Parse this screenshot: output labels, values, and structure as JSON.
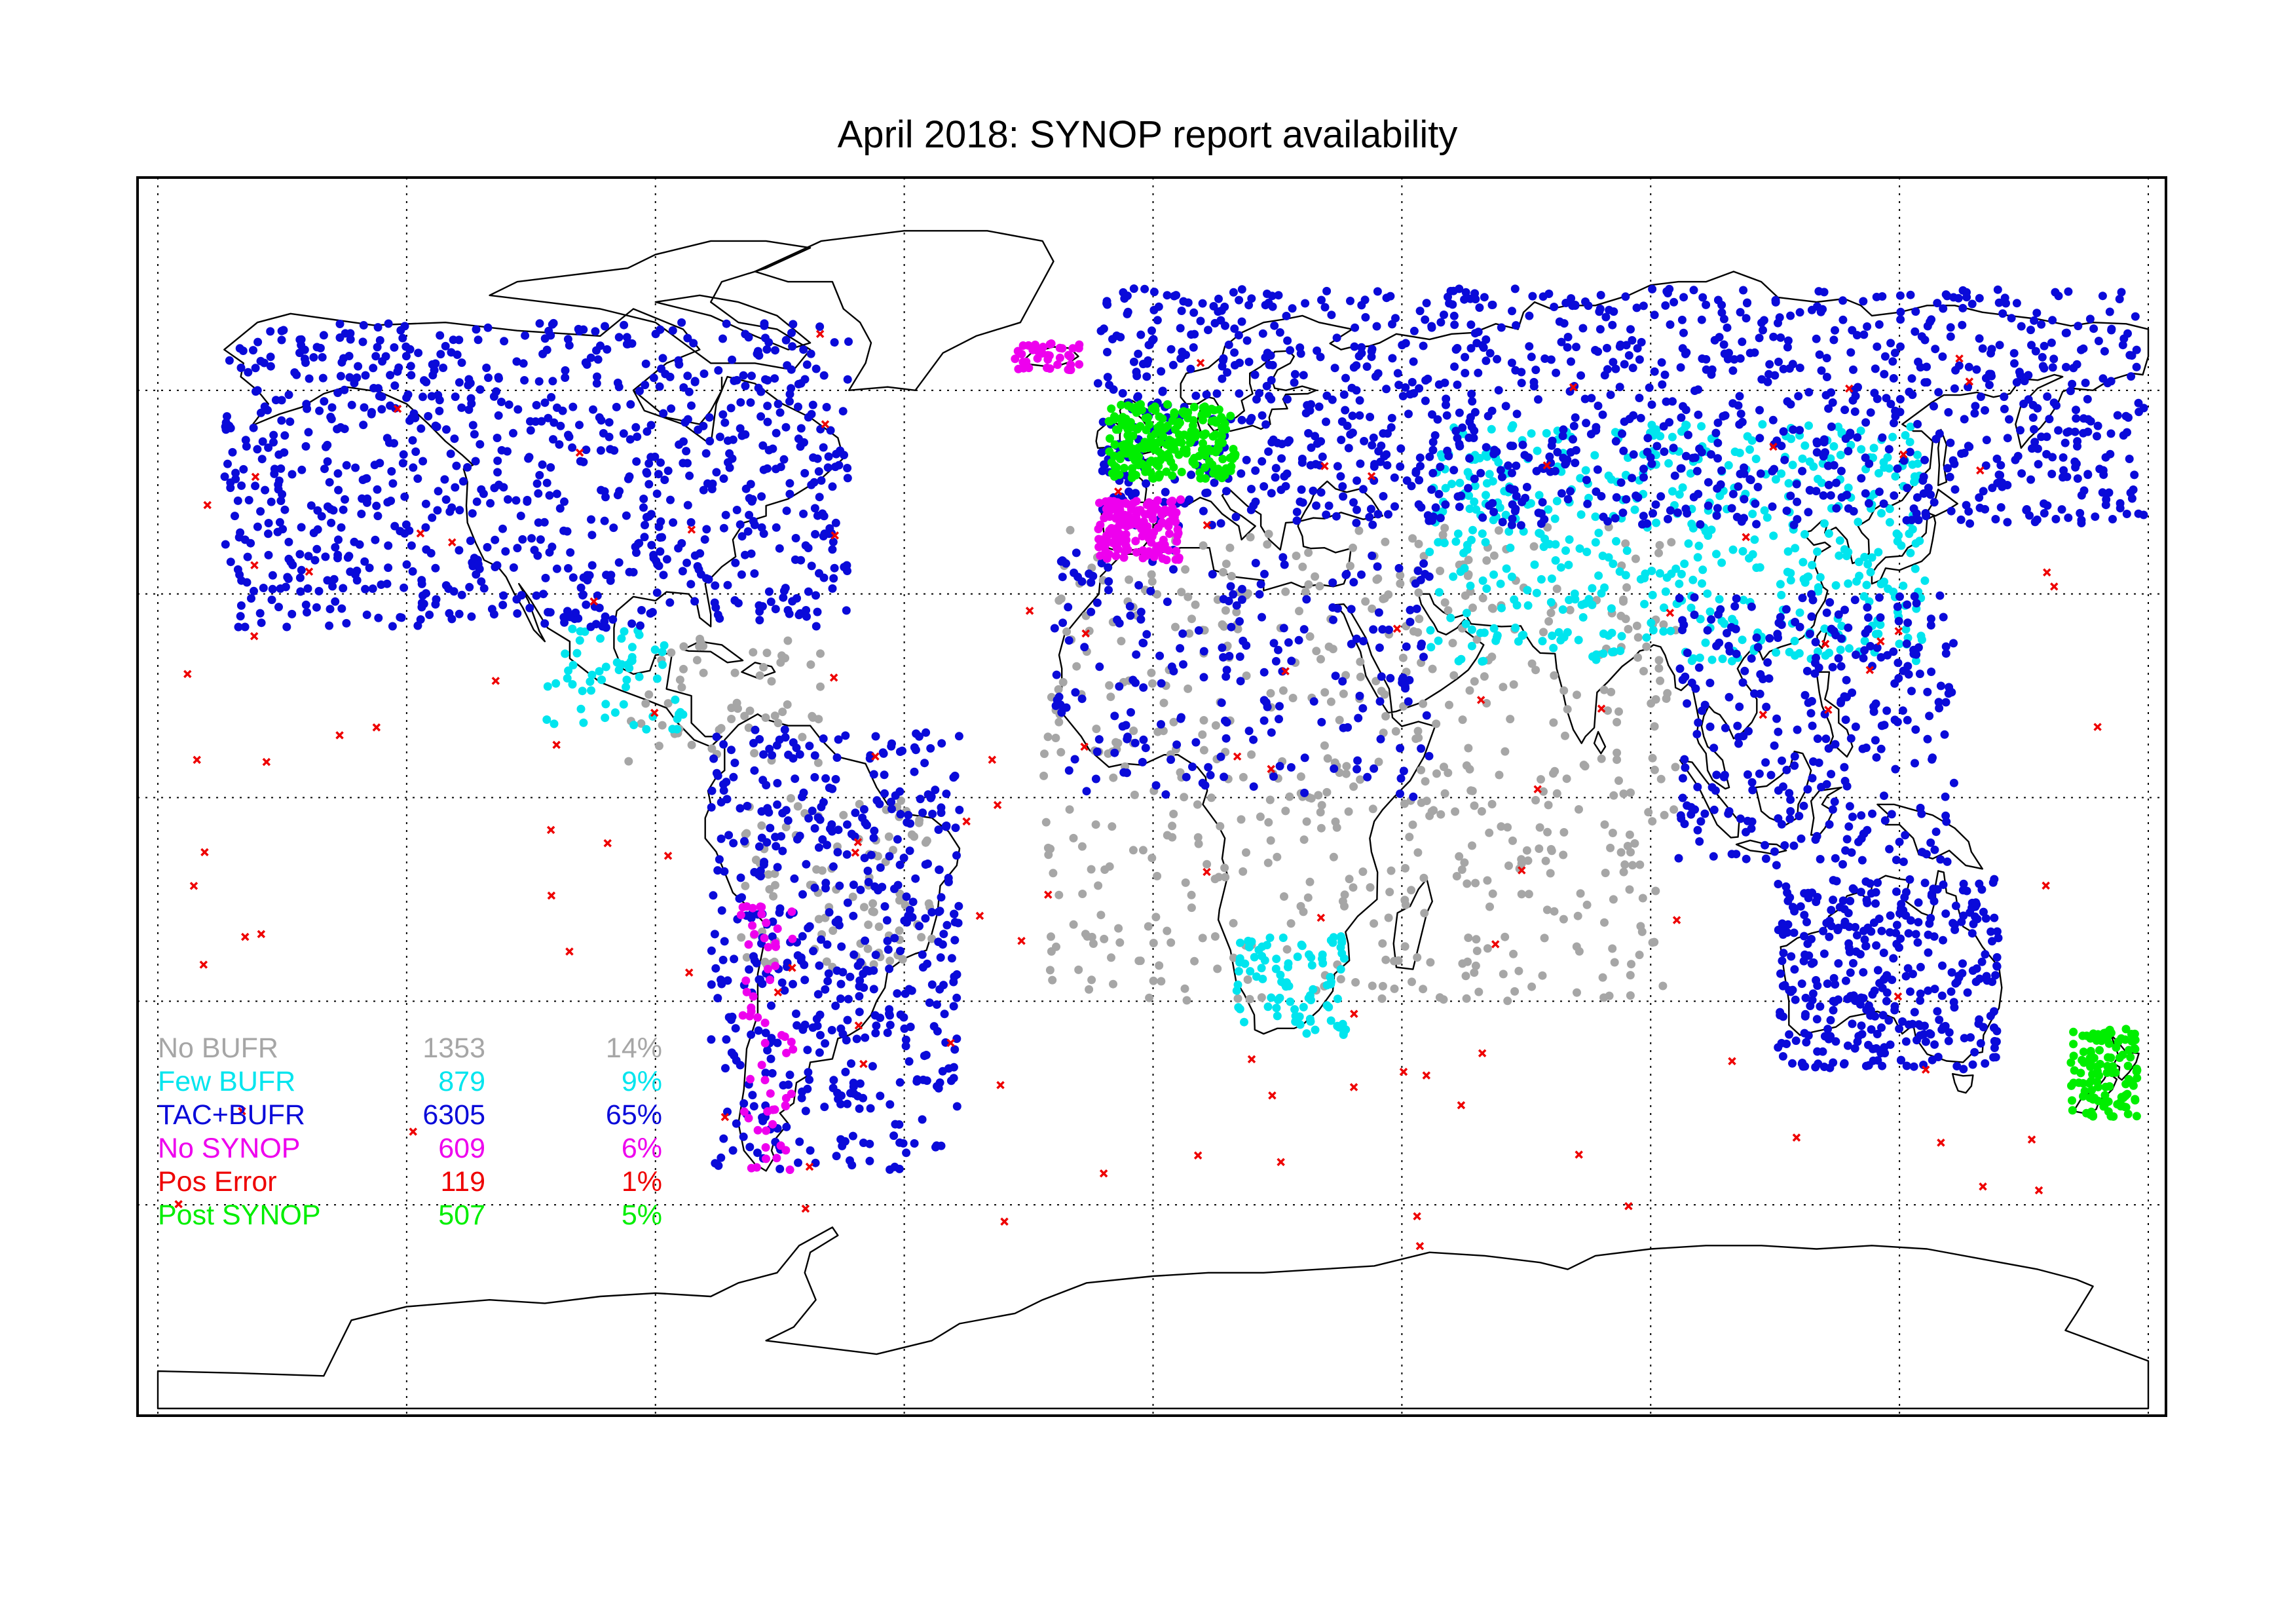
{
  "title": "April 2018: SYNOP report availability",
  "colors": {
    "no_bufr": "#a6a6a6",
    "few_bufr": "#00e5ee",
    "tac_bufr": "#0a0ad9",
    "no_synop": "#ee00ee",
    "pos_error": "#ee0000",
    "post_synop": "#00ee00",
    "coastline": "#000000",
    "grid": "#000000"
  },
  "legend": [
    {
      "key": "no_bufr",
      "label": "No BUFR",
      "count": "1353",
      "percent": "14%"
    },
    {
      "key": "few_bufr",
      "label": "Few BUFR",
      "count": "879",
      "percent": "9%"
    },
    {
      "key": "tac_bufr",
      "label": "TAC+BUFR",
      "count": "6305",
      "percent": "65%"
    },
    {
      "key": "no_synop",
      "label": "No SYNOP",
      "count": "609",
      "percent": "6%"
    },
    {
      "key": "pos_error",
      "label": "Pos Error",
      "count": "119",
      "percent": "1%"
    },
    {
      "key": "post_synop",
      "label": "Post SYNOP",
      "count": "507",
      "percent": "5%"
    }
  ],
  "map": {
    "projection": "equirectangular",
    "lon_range": [
      -180,
      180
    ],
    "lat_range": [
      -90,
      90
    ],
    "grid_lon_step": 45,
    "grid_lat_step": 30,
    "grid_style": "dotted",
    "continents": [
      "north-america",
      "greenland",
      "south-america",
      "europe-asia",
      "africa",
      "australia",
      "antarctica",
      "arabia",
      "india",
      "indochina",
      "japan",
      "indonesia",
      "new-guinea",
      "new-zealand",
      "madagascar",
      "great-britain",
      "iceland",
      "philippines",
      "sri-lanka"
    ],
    "station_clusters": [
      {
        "type": "tac_bufr",
        "lon": [
          -168,
          -55
        ],
        "lat": [
          25,
          70
        ],
        "n": 900
      },
      {
        "type": "tac_bufr",
        "lon": [
          -10,
          180
        ],
        "lat": [
          40,
          75
        ],
        "n": 1200
      },
      {
        "type": "tac_bufr",
        "lon": [
          -80,
          -35
        ],
        "lat": [
          -55,
          10
        ],
        "n": 500
      },
      {
        "type": "tac_bufr",
        "lon": [
          113,
          153
        ],
        "lat": [
          -40,
          -12
        ],
        "n": 350
      },
      {
        "type": "tac_bufr",
        "lon": [
          95,
          145
        ],
        "lat": [
          -10,
          30
        ],
        "n": 300
      },
      {
        "type": "tac_bufr",
        "lon": [
          -18,
          50
        ],
        "lat": [
          0,
          38
        ],
        "n": 220
      },
      {
        "type": "few_bufr",
        "lon": [
          50,
          140
        ],
        "lat": [
          20,
          55
        ],
        "n": 520
      },
      {
        "type": "few_bufr",
        "lon": [
          15,
          35
        ],
        "lat": [
          -35,
          -20
        ],
        "n": 90
      },
      {
        "type": "few_bufr",
        "lon": [
          -110,
          -85
        ],
        "lat": [
          10,
          25
        ],
        "n": 60
      },
      {
        "type": "no_bufr",
        "lon": [
          -20,
          95
        ],
        "lat": [
          -30,
          40
        ],
        "n": 600
      },
      {
        "type": "no_bufr",
        "lon": [
          -75,
          -40
        ],
        "lat": [
          -25,
          0
        ],
        "n": 100
      },
      {
        "type": "no_bufr",
        "lon": [
          -95,
          -60
        ],
        "lat": [
          5,
          25
        ],
        "n": 60
      },
      {
        "type": "no_synop",
        "lon": [
          -10,
          5
        ],
        "lat": [
          35,
          44
        ],
        "n": 150
      },
      {
        "type": "no_synop",
        "lon": [
          -75,
          -65
        ],
        "lat": [
          -55,
          -15
        ],
        "n": 60
      },
      {
        "type": "no_synop",
        "lon": [
          -25,
          -13
        ],
        "lat": [
          63,
          67
        ],
        "n": 40
      },
      {
        "type": "post_synop",
        "lon": [
          -8,
          15
        ],
        "lat": [
          47,
          58
        ],
        "n": 240
      },
      {
        "type": "post_synop",
        "lon": [
          166,
          178
        ],
        "lat": [
          -47,
          -34
        ],
        "n": 120
      },
      {
        "type": "pos_error",
        "lon": [
          -180,
          180
        ],
        "lat": [
          -70,
          70
        ],
        "n": 119
      }
    ]
  }
}
